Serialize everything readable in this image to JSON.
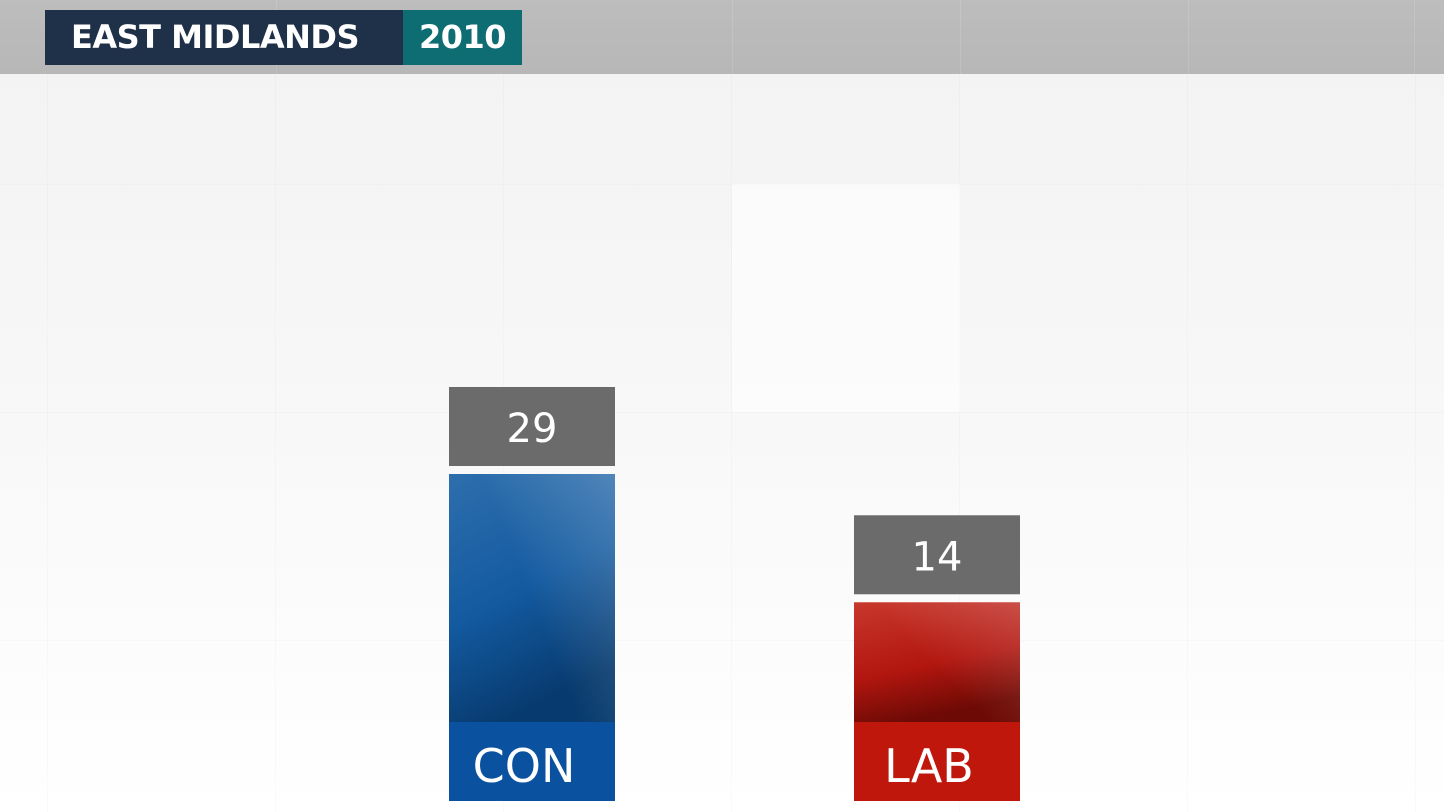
{
  "header": {
    "region": "EAST MIDLANDS",
    "year": "2010"
  },
  "colors": {
    "con": "#0a55a3",
    "con_label": "#0a52a0",
    "lab": "#c41d12",
    "lab_label": "#c0170d",
    "value_box": "#6b6b6b",
    "header_region": "#1e3148",
    "header_year": "#0e6d73"
  },
  "chart_data": {
    "type": "bar",
    "categories": [
      "CON",
      "LAB"
    ],
    "values": [
      29,
      14
    ],
    "title": "",
    "xlabel": "",
    "ylabel": "",
    "ylim": [
      0,
      29
    ],
    "grid": false,
    "legend": "none",
    "series_colors": [
      "#0a55a3",
      "#c41d12"
    ]
  }
}
